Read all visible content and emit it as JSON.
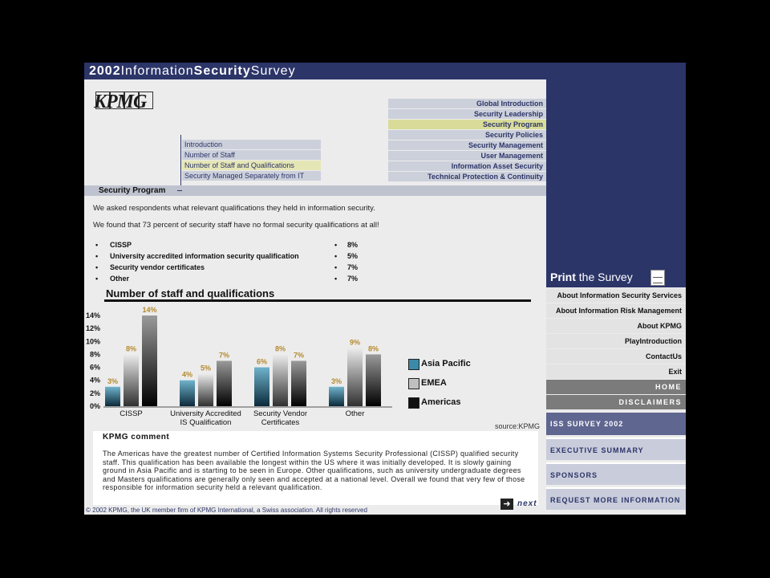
{
  "header": {
    "year": "2002",
    "word1": "Information",
    "word2": "Security",
    "word3": "Survey"
  },
  "logo": {
    "text": "KPMG"
  },
  "top_nav": [
    {
      "label": "Global Introduction",
      "active": false
    },
    {
      "label": "Security Leadership",
      "active": false
    },
    {
      "label": "Security Program",
      "active": true
    },
    {
      "label": "Security Policies",
      "active": false
    },
    {
      "label": "Security Management",
      "active": false
    },
    {
      "label": "User Management",
      "active": false
    },
    {
      "label": "Information Asset Security",
      "active": false
    },
    {
      "label": "Technical Protection & Continuity",
      "active": false
    }
  ],
  "sub_nav": [
    {
      "label": "Introduction",
      "active": false
    },
    {
      "label": "Number of Staff",
      "active": false
    },
    {
      "label": "Number of Staff and Qualifications",
      "active": true
    },
    {
      "label": "Security Managed Separately from IT",
      "active": false
    }
  ],
  "section_title": "Security Program",
  "para1": "We asked respondents what relevant qualifications they held in information security.",
  "para2": "We found that 73 percent of security staff have no formal security qualifications at all!",
  "qualifications": [
    {
      "name": "CISSP",
      "pct": "8%"
    },
    {
      "name": "University accredited information security qualification",
      "pct": "5%"
    },
    {
      "name": "Security vendor certificates",
      "pct": "7%"
    },
    {
      "name": "Other",
      "pct": "7%"
    }
  ],
  "chart_data": {
    "type": "bar",
    "title": "Number of staff and qualifications",
    "categories": [
      "CISSP",
      "University Accredited IS Qualification",
      "Security Vendor Certificates",
      "Other"
    ],
    "category_lines": [
      [
        "CISSP"
      ],
      [
        "University Accredited",
        "IS Qualification"
      ],
      [
        "Security Vendor",
        "Certificates"
      ],
      [
        "Other"
      ]
    ],
    "series": [
      {
        "name": "Asia Pacific",
        "values": [
          3,
          4,
          6,
          3
        ],
        "color": "#3a8aa8"
      },
      {
        "name": "EMEA",
        "values": [
          8,
          5,
          8,
          9
        ],
        "color": "#c0c0c0"
      },
      {
        "name": "Americas",
        "values": [
          14,
          7,
          7,
          8
        ],
        "color": "#111111"
      }
    ],
    "yticks": [
      "0%",
      "2%",
      "4%",
      "6%",
      "8%",
      "10%",
      "12%",
      "14%"
    ],
    "ylim": [
      0,
      14
    ],
    "value_label_color": "#b58a2e",
    "legend_position": "right"
  },
  "source": "source:KPMG",
  "comment": {
    "heading": "KPMG comment",
    "text": "The Americas have the greatest number of Certified Information Systems Security Professional (CISSP) qualified security staff. This qualification has been available the longest within the US where it was initially developed. It is slowly gaining ground in Asia Pacific and is starting to be seen in Europe. Other qualifications, such as university undergraduate degrees and Masters qualifications are generally only seen and accepted at a national level. Overall we found that very few of those responsible for information security held a relevant qualification."
  },
  "copyright": "© 2002 KPMG, the UK member firm of KPMG International, a Swiss association. All rights reserved",
  "next_label": "next",
  "print": {
    "word1": "Print",
    "word2": " the Survey"
  },
  "right_menu": [
    {
      "label": "About Information Security Services",
      "dark": false
    },
    {
      "label": "About Information Risk Management",
      "dark": false
    },
    {
      "label": "About KPMG",
      "dark": false
    },
    {
      "label": "PlayIntroduction",
      "dark": false
    },
    {
      "label": "ContactUs",
      "dark": false
    },
    {
      "label": "Exit",
      "dark": false
    },
    {
      "label": "HOME",
      "dark": true
    },
    {
      "label": "DISCLAIMERS",
      "dark": true
    }
  ],
  "right_buttons": [
    {
      "label": "ISS SURVEY 2002",
      "active": true
    },
    {
      "label": "EXECUTIVE SUMMARY",
      "active": false
    },
    {
      "label": "SPONSORS",
      "active": false
    },
    {
      "label": "REQUEST MORE INFORMATION",
      "active": false
    }
  ]
}
